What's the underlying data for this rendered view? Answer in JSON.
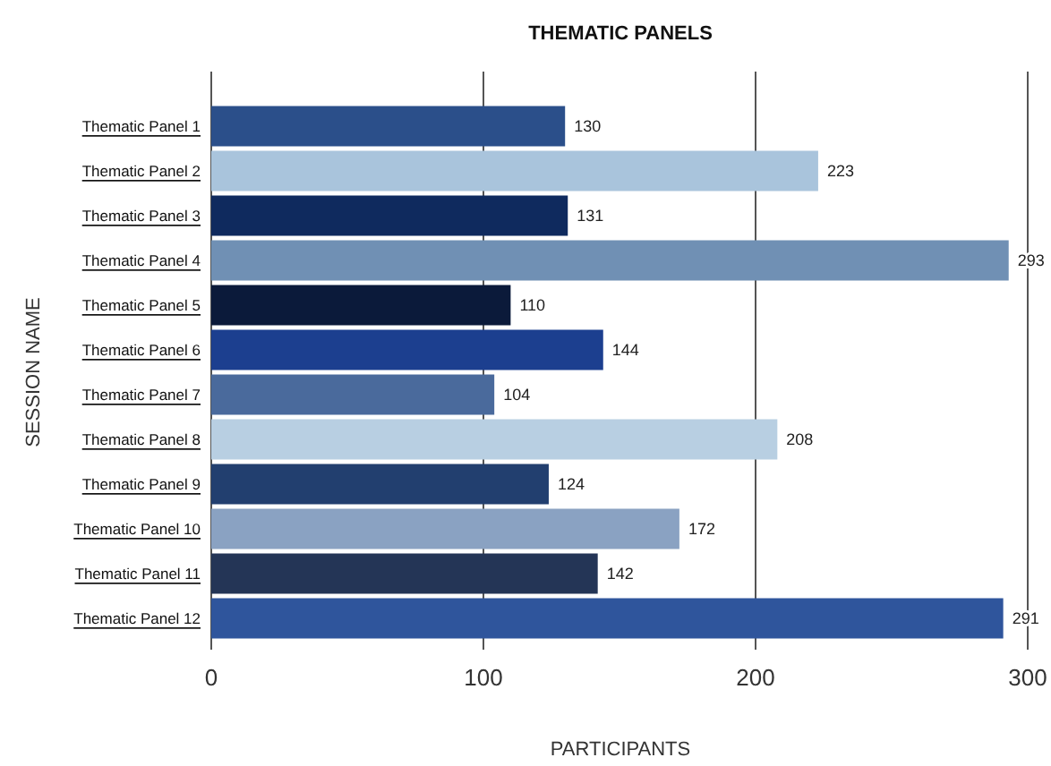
{
  "chart_data": {
    "type": "bar",
    "orientation": "horizontal",
    "title": "THEMATIC PANELS",
    "xlabel": "PARTICIPANTS",
    "ylabel": "SESSION NAME",
    "categories": [
      "Thematic Panel 1",
      "Thematic Panel 2",
      "Thematic Panel 3",
      "Thematic Panel 4",
      "Thematic Panel 5",
      "Thematic Panel 6",
      "Thematic Panel 7",
      "Thematic Panel 8",
      "Thematic Panel 9",
      "Thematic Panel 10",
      "Thematic Panel 11",
      "Thematic Panel 12"
    ],
    "values": [
      130,
      223,
      131,
      293,
      110,
      144,
      104,
      208,
      124,
      172,
      142,
      291
    ],
    "colors": [
      "#2b4f8a",
      "#a9c4dc",
      "#0f2a5e",
      "#7090b4",
      "#0b1a3a",
      "#1c3f8f",
      "#4a6a9c",
      "#b8cfe2",
      "#223f6f",
      "#8aa2c2",
      "#243556",
      "#2f559c"
    ],
    "xlim": [
      0,
      300
    ],
    "xticks": [
      0,
      100,
      200,
      300
    ],
    "grid": "x",
    "data_labels": true
  }
}
